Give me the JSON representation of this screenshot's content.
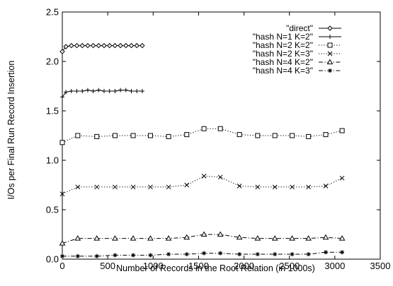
{
  "chart_data": {
    "type": "line",
    "title": "",
    "xlabel": "Number of Records in the Root Relation (in 1000s)",
    "ylabel": "I/Os per Final Run Record Insertion",
    "xlim": [
      0,
      3500
    ],
    "ylim": [
      0,
      2.5
    ],
    "xticks": [
      0,
      500,
      1000,
      1500,
      2000,
      2500,
      3000,
      3500
    ],
    "yticks": [
      0,
      0.5,
      1,
      1.5,
      2,
      2.5
    ],
    "xtick_labels": [
      "0",
      "500",
      "1000",
      "1500",
      "2000",
      "2500",
      "3000",
      "3500"
    ],
    "ytick_labels": [
      "0.0",
      "0.5",
      "1.0",
      "1.5",
      "2.0",
      "2.5"
    ],
    "grid": false,
    "legend_position": "top-right",
    "series": [
      {
        "name": "\"direct\"",
        "marker": "diamond",
        "dash": "solid",
        "x": [
          0,
          40,
          100,
          160,
          220,
          280,
          340,
          400,
          460,
          520,
          580,
          640,
          700,
          760,
          820,
          880
        ],
        "y": [
          2.1,
          2.15,
          2.16,
          2.16,
          2.16,
          2.16,
          2.16,
          2.16,
          2.16,
          2.16,
          2.16,
          2.16,
          2.16,
          2.16,
          2.16,
          2.16
        ]
      },
      {
        "name": "\"hash N=1 K=2\"",
        "marker": "plus",
        "dash": "solid",
        "x": [
          0,
          40,
          100,
          160,
          220,
          280,
          340,
          400,
          460,
          520,
          580,
          640,
          700,
          760,
          820,
          880
        ],
        "y": [
          1.64,
          1.69,
          1.7,
          1.7,
          1.7,
          1.71,
          1.7,
          1.71,
          1.7,
          1.7,
          1.7,
          1.71,
          1.71,
          1.7,
          1.7,
          1.7
        ]
      },
      {
        "name": "\"hash N=2 K=2\"",
        "marker": "square",
        "dash": "dotted",
        "x": [
          0,
          170,
          380,
          580,
          780,
          970,
          1170,
          1370,
          1560,
          1740,
          1950,
          2150,
          2340,
          2530,
          2710,
          2900,
          3080
        ],
        "y": [
          1.18,
          1.25,
          1.24,
          1.25,
          1.25,
          1.25,
          1.24,
          1.26,
          1.32,
          1.32,
          1.26,
          1.25,
          1.25,
          1.25,
          1.24,
          1.26,
          1.3
        ]
      },
      {
        "name": "\"hash N=2 K=3\"",
        "marker": "cross",
        "dash": "dotted",
        "x": [
          0,
          170,
          380,
          580,
          780,
          970,
          1170,
          1370,
          1560,
          1740,
          1950,
          2150,
          2340,
          2530,
          2710,
          2900,
          3080
        ],
        "y": [
          0.66,
          0.73,
          0.73,
          0.73,
          0.73,
          0.73,
          0.73,
          0.75,
          0.84,
          0.83,
          0.74,
          0.73,
          0.73,
          0.73,
          0.73,
          0.74,
          0.82
        ]
      },
      {
        "name": "\"hash N=4 K=2\"",
        "marker": "triangle",
        "dash": "dashdot",
        "x": [
          0,
          170,
          380,
          580,
          780,
          970,
          1170,
          1370,
          1560,
          1740,
          1950,
          2150,
          2340,
          2530,
          2710,
          2900,
          3080
        ],
        "y": [
          0.16,
          0.21,
          0.21,
          0.21,
          0.21,
          0.21,
          0.21,
          0.22,
          0.25,
          0.25,
          0.22,
          0.21,
          0.21,
          0.21,
          0.21,
          0.22,
          0.21
        ]
      },
      {
        "name": "\"hash N=4 K=3\"",
        "marker": "star",
        "dash": "dashdot",
        "x": [
          0,
          170,
          380,
          580,
          780,
          970,
          1170,
          1370,
          1560,
          1740,
          1950,
          2150,
          2340,
          2530,
          2710,
          2900,
          3080
        ],
        "y": [
          0.03,
          0.03,
          0.03,
          0.04,
          0.04,
          0.04,
          0.05,
          0.05,
          0.06,
          0.06,
          0.05,
          0.05,
          0.05,
          0.05,
          0.05,
          0.07,
          0.07
        ]
      }
    ]
  }
}
